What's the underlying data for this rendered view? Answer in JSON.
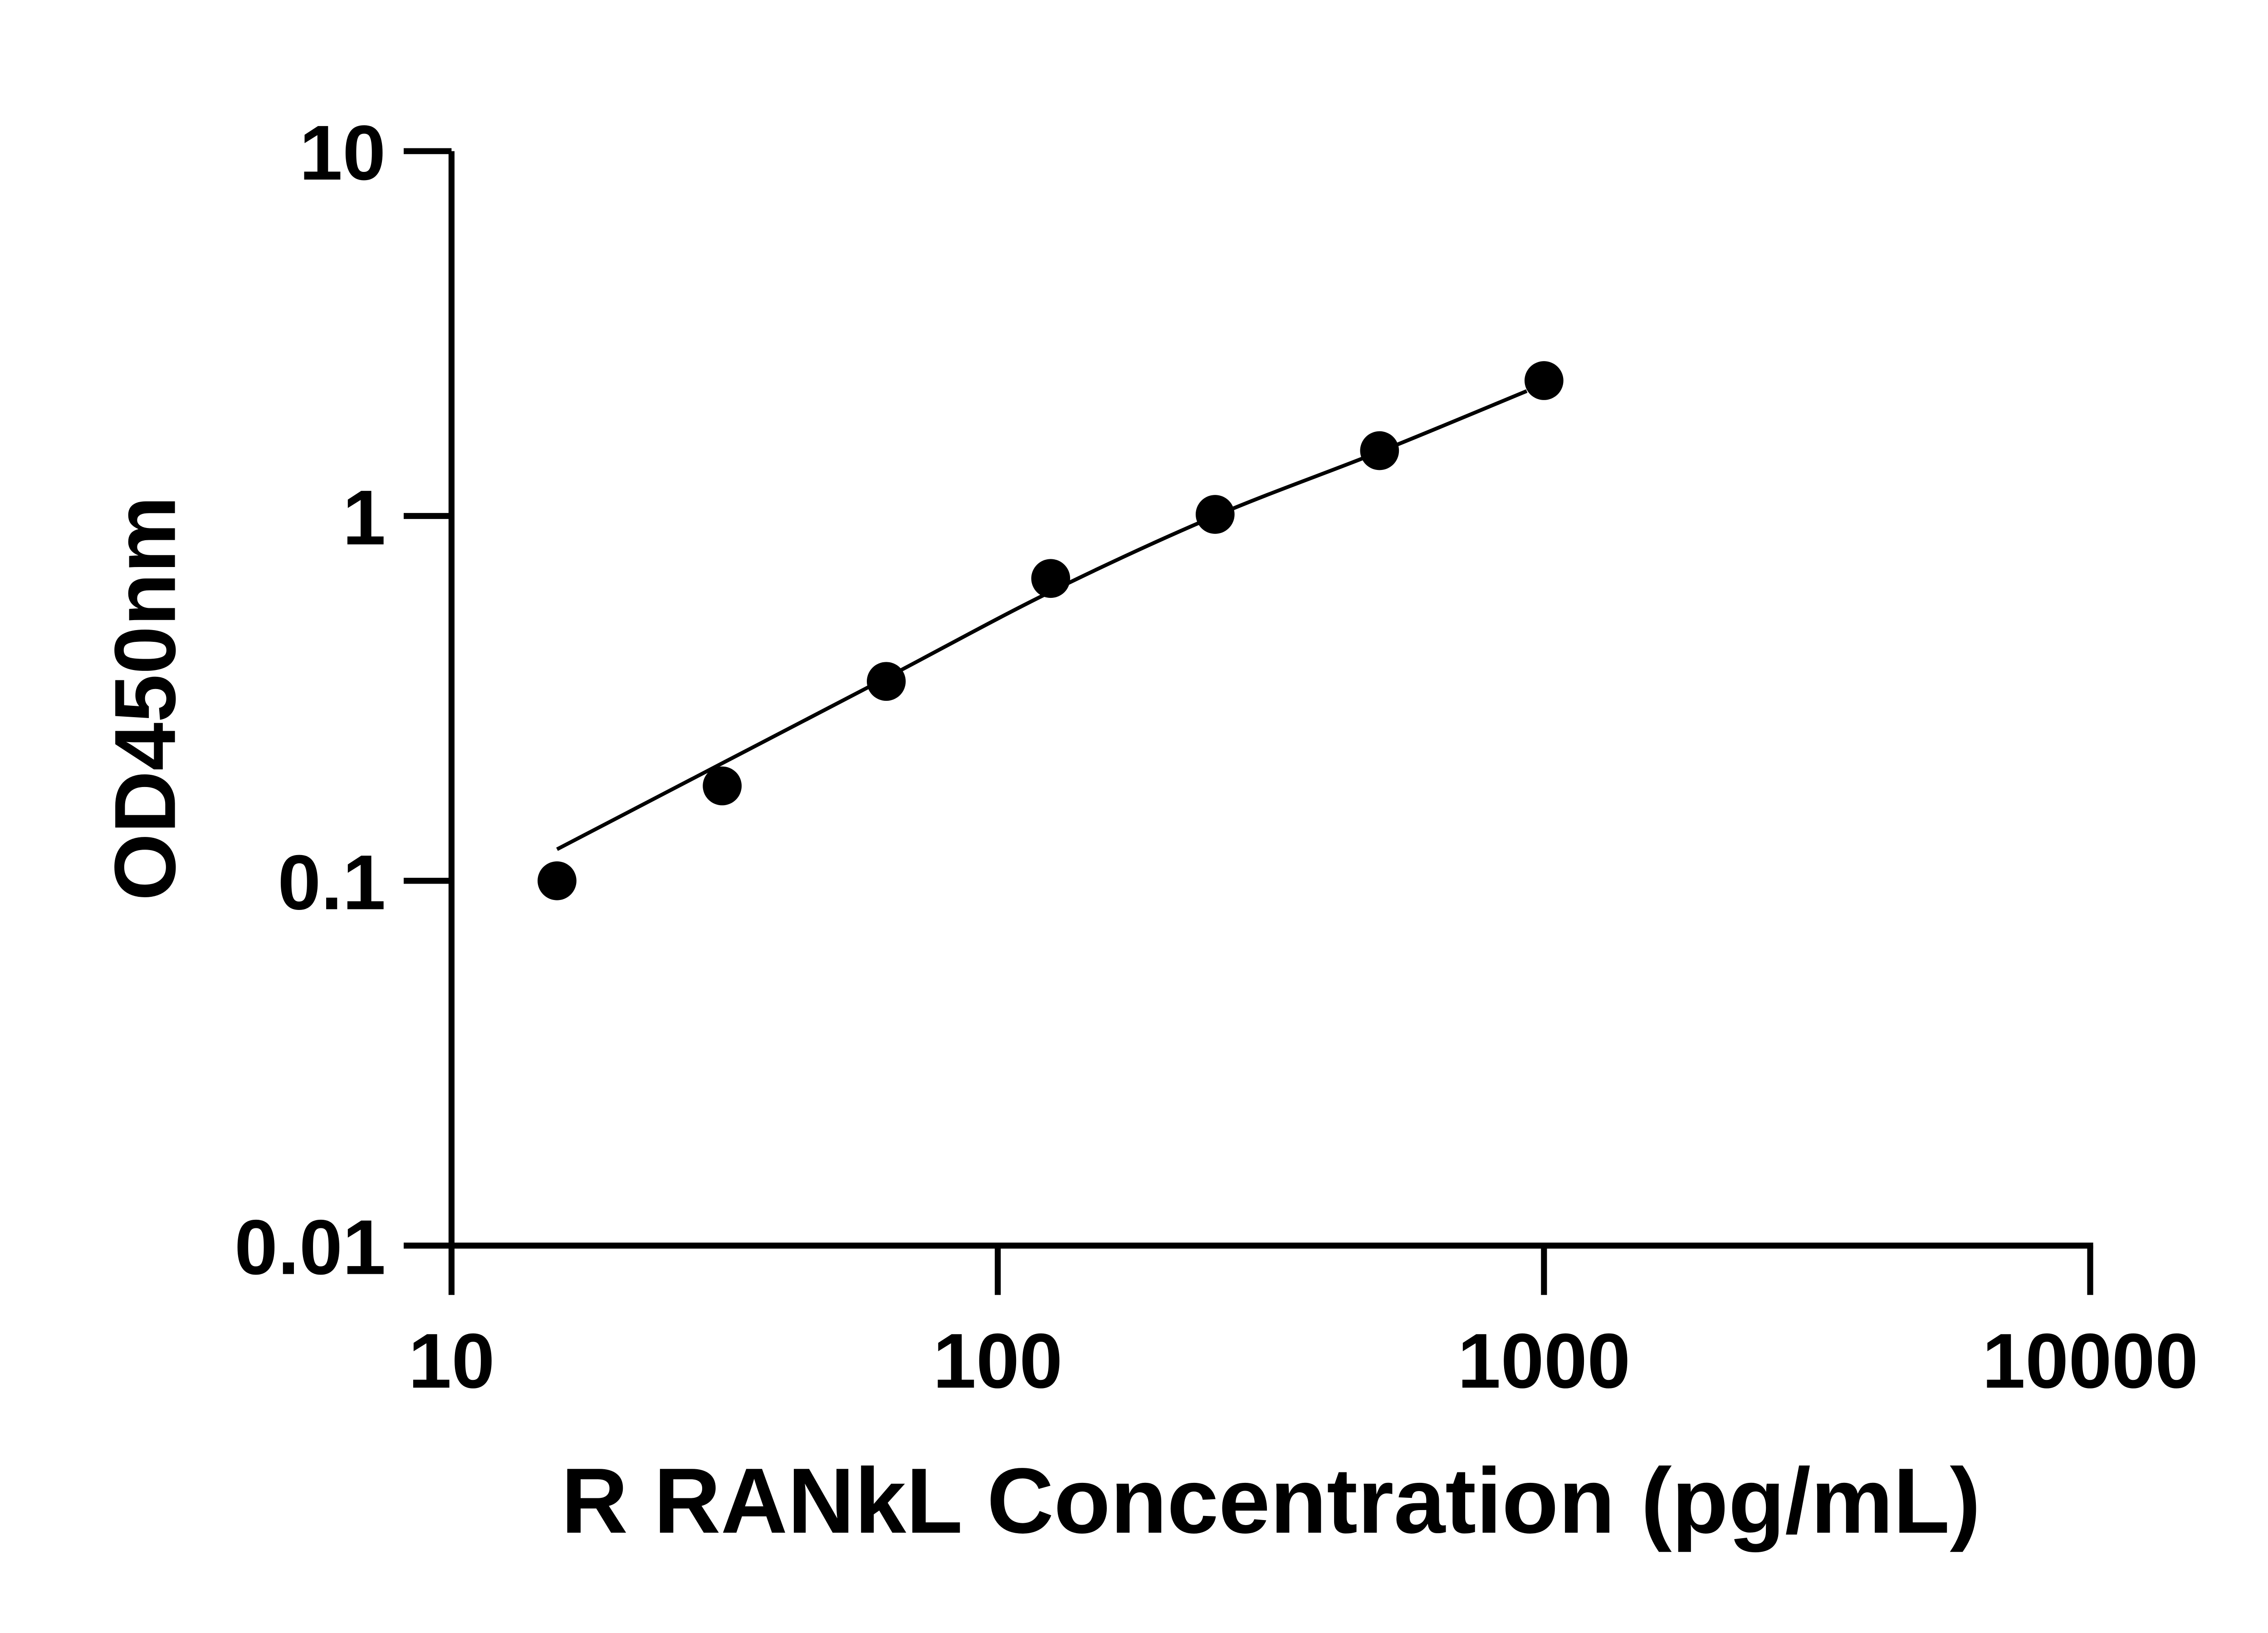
{
  "chart_data": {
    "type": "scatter",
    "title": "",
    "xlabel": "R RANkL Concentration (pg/mL)",
    "ylabel": "OD450nm",
    "x_scale": "log",
    "y_scale": "log",
    "xlim": [
      10,
      10000
    ],
    "ylim": [
      0.01,
      10
    ],
    "x_ticks": [
      "10",
      "100",
      "1000",
      "10000"
    ],
    "x_tick_values": [
      10,
      100,
      1000,
      10000
    ],
    "y_ticks": [
      "0.01",
      "0.1",
      "1",
      "10"
    ],
    "y_tick_values": [
      0.01,
      0.1,
      1,
      10
    ],
    "grid": false,
    "points": {
      "x": [
        15.6,
        31.3,
        62.5,
        125,
        250,
        500,
        1000
      ],
      "y": [
        0.1,
        0.182,
        0.352,
        0.674,
        1.01,
        1.51,
        2.35
      ]
    },
    "fit_curve": {
      "x": [
        15.6,
        31.3,
        62.5,
        125,
        250,
        500,
        930
      ],
      "y": [
        0.122,
        0.21,
        0.36,
        0.62,
        1.0,
        1.5,
        2.2
      ]
    },
    "colors": {
      "points": "#000000",
      "line": "#000000"
    }
  }
}
